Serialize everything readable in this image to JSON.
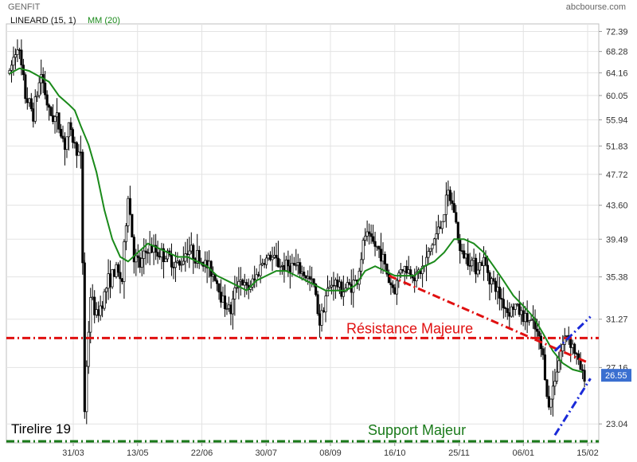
{
  "header": {
    "ticker": "GENFIT",
    "source": "abcbourse.com"
  },
  "legend": {
    "indicator1": "LINEARD (15, 1)",
    "indicator2": "MM (20)"
  },
  "colors": {
    "candle": "#000000",
    "ma": "#1a8a1a",
    "resistance": "#e01010",
    "support": "#1a7a1a",
    "channel": "#1a2ad8",
    "last_price_badge": "#3a6fd0",
    "grid": "#e3e3e3"
  },
  "chart_data": {
    "type": "candlestick",
    "y_scale": "log",
    "ylim": [
      21.8,
      74.0
    ],
    "y_ticks": [
      "72.39",
      "68.28",
      "64.16",
      "60.05",
      "55.94",
      "51.83",
      "47.72",
      "43.60",
      "39.49",
      "35.38",
      "31.27",
      "27.16",
      "23.04"
    ],
    "x_ticks": [
      "31/03",
      "13/05",
      "22/06",
      "30/07",
      "08/09",
      "16/10",
      "25/11",
      "06/01",
      "15/02"
    ],
    "last_price": "26.55",
    "price_path": [
      [
        0,
        64.0
      ],
      [
        4,
        70.0
      ],
      [
        8,
        60.0
      ],
      [
        12,
        57.0
      ],
      [
        16,
        64.0
      ],
      [
        20,
        57.0
      ],
      [
        24,
        56.0
      ],
      [
        28,
        52.0
      ],
      [
        30,
        54.5
      ],
      [
        33,
        52.0
      ],
      [
        36,
        50.0
      ],
      [
        38,
        24.0
      ],
      [
        41,
        33.5
      ],
      [
        44,
        31.5
      ],
      [
        47,
        33.0
      ],
      [
        50,
        35.0
      ],
      [
        54,
        36.0
      ],
      [
        57,
        35.0
      ],
      [
        60,
        45.0
      ],
      [
        63,
        37.5
      ],
      [
        66,
        36.5
      ],
      [
        70,
        38.5
      ],
      [
        75,
        38.0
      ],
      [
        80,
        37.5
      ],
      [
        86,
        36.5
      ],
      [
        90,
        38.5
      ],
      [
        95,
        37.5
      ],
      [
        100,
        36.5
      ],
      [
        104,
        35.5
      ],
      [
        108,
        33.0
      ],
      [
        112,
        32.0
      ],
      [
        116,
        35.5
      ],
      [
        120,
        34.0
      ],
      [
        124,
        35.0
      ],
      [
        128,
        37.0
      ],
      [
        132,
        37.5
      ],
      [
        138,
        36.5
      ],
      [
        144,
        36.5
      ],
      [
        150,
        35.5
      ],
      [
        154,
        34.5
      ],
      [
        157,
        31.0
      ],
      [
        160,
        33.5
      ],
      [
        164,
        35.0
      ],
      [
        168,
        34.0
      ],
      [
        172,
        34.5
      ],
      [
        176,
        35.0
      ],
      [
        180,
        40.0
      ],
      [
        184,
        39.0
      ],
      [
        188,
        38.0
      ],
      [
        192,
        35.0
      ],
      [
        195,
        34.0
      ],
      [
        198,
        36.5
      ],
      [
        202,
        36.0
      ],
      [
        206,
        35.5
      ],
      [
        210,
        36.5
      ],
      [
        214,
        39.0
      ],
      [
        218,
        41.0
      ],
      [
        222,
        45.0
      ],
      [
        225,
        43.0
      ],
      [
        228,
        38.0
      ],
      [
        232,
        37.5
      ],
      [
        236,
        36.5
      ],
      [
        240,
        37.0
      ],
      [
        244,
        35.0
      ],
      [
        248,
        33.5
      ],
      [
        252,
        32.0
      ],
      [
        256,
        32.5
      ],
      [
        260,
        31.5
      ],
      [
        264,
        31.0
      ],
      [
        267,
        30.0
      ],
      [
        270,
        28.0
      ],
      [
        273,
        24.0
      ],
      [
        276,
        26.5
      ],
      [
        279,
        28.5
      ],
      [
        282,
        30.0
      ],
      [
        285,
        29.0
      ],
      [
        288,
        27.5
      ],
      [
        290,
        26.55
      ]
    ],
    "ma_path": [
      [
        0,
        64.0
      ],
      [
        5,
        65.0
      ],
      [
        10,
        64.5
      ],
      [
        15,
        63.5
      ],
      [
        20,
        62.5
      ],
      [
        25,
        60.0
      ],
      [
        30,
        58.5
      ],
      [
        33,
        57.5
      ],
      [
        36,
        55.0
      ],
      [
        40,
        52.0
      ],
      [
        44,
        48.0
      ],
      [
        48,
        43.0
      ],
      [
        52,
        39.5
      ],
      [
        56,
        37.5
      ],
      [
        60,
        37.0
      ],
      [
        65,
        38.0
      ],
      [
        70,
        39.0
      ],
      [
        75,
        38.5
      ],
      [
        80,
        38.0
      ],
      [
        85,
        37.5
      ],
      [
        90,
        37.5
      ],
      [
        95,
        37.0
      ],
      [
        100,
        36.5
      ],
      [
        105,
        35.5
      ],
      [
        110,
        35.0
      ],
      [
        115,
        34.5
      ],
      [
        120,
        34.0
      ],
      [
        125,
        35.0
      ],
      [
        130,
        35.5
      ],
      [
        135,
        36.0
      ],
      [
        140,
        36.0
      ],
      [
        145,
        35.5
      ],
      [
        150,
        35.0
      ],
      [
        155,
        34.5
      ],
      [
        160,
        34.0
      ],
      [
        165,
        34.0
      ],
      [
        170,
        34.0
      ],
      [
        175,
        34.5
      ],
      [
        180,
        36.0
      ],
      [
        185,
        36.5
      ],
      [
        190,
        36.0
      ],
      [
        195,
        35.5
      ],
      [
        200,
        35.5
      ],
      [
        205,
        35.5
      ],
      [
        210,
        36.5
      ],
      [
        215,
        37.0
      ],
      [
        220,
        38.0
      ],
      [
        225,
        39.5
      ],
      [
        230,
        39.5
      ],
      [
        235,
        39.0
      ],
      [
        240,
        38.0
      ],
      [
        245,
        36.5
      ],
      [
        250,
        35.0
      ],
      [
        255,
        33.5
      ],
      [
        260,
        32.5
      ],
      [
        265,
        31.5
      ],
      [
        270,
        30.0
      ],
      [
        275,
        28.5
      ],
      [
        280,
        27.5
      ],
      [
        285,
        27.0
      ],
      [
        290,
        26.8
      ]
    ],
    "annotations": {
      "resistance_label": "Résistance Majeure",
      "support_label": "Support Majeur",
      "tirelire_label": "Tirelire 19",
      "resistance_level": 29.6,
      "support_level": 21.9,
      "tirelire_level": 29.6,
      "trendline": [
        [
          192,
          35.5
        ],
        [
          292,
          27.6
        ]
      ],
      "channel_upper": [
        [
          276,
          28.5
        ],
        [
          294,
          31.5
        ]
      ],
      "channel_lower": [
        [
          276,
          22.3
        ],
        [
          294,
          26.3
        ]
      ]
    },
    "xlim": [
      0,
      295
    ]
  }
}
